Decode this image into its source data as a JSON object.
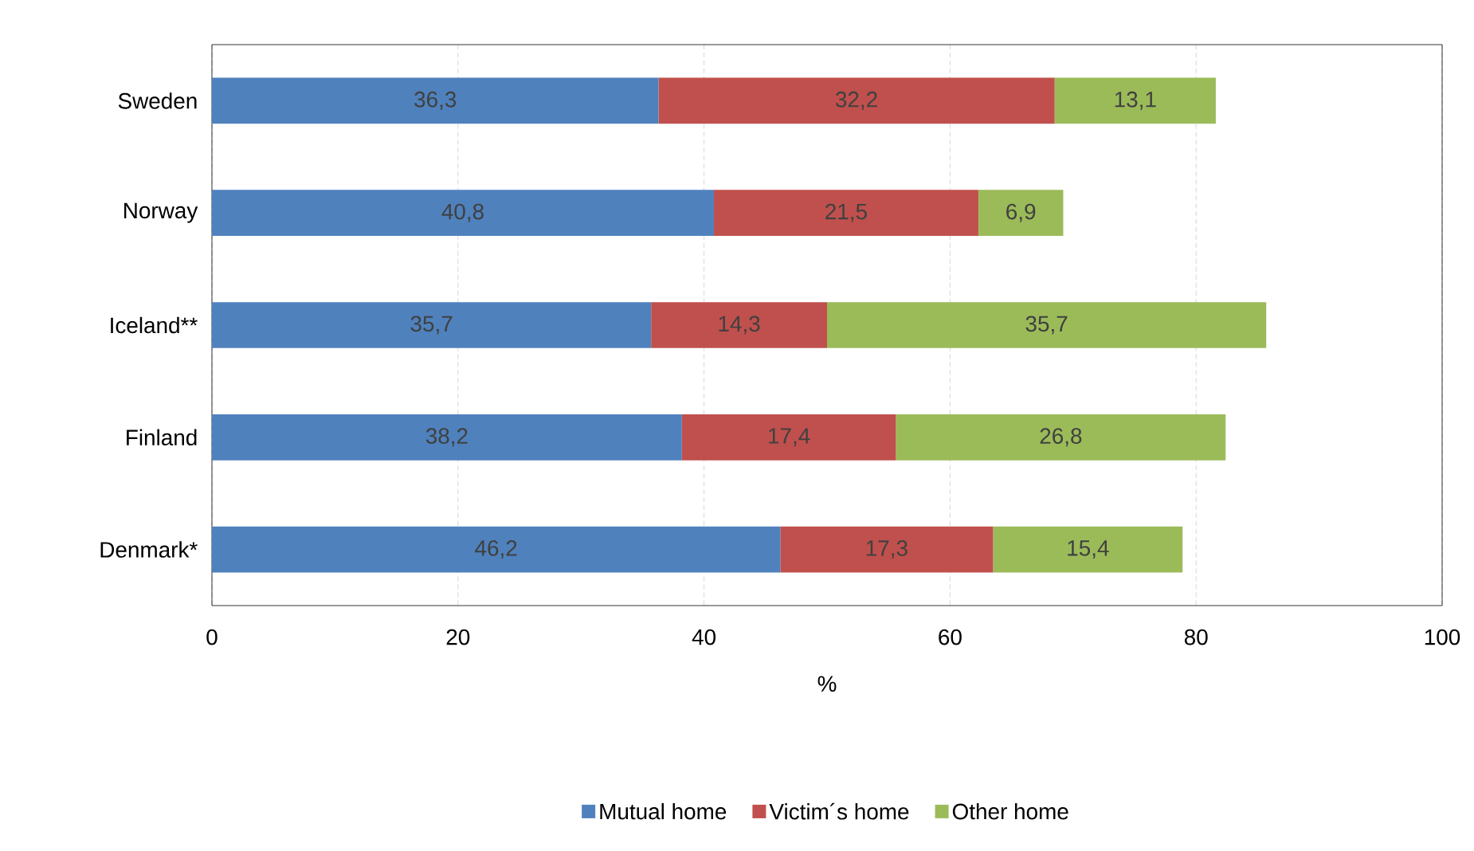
{
  "chart_data": {
    "type": "bar",
    "orientation": "horizontal",
    "stacked": true,
    "xlabel": "%",
    "categories": [
      "Sweden",
      "Norway",
      "Iceland**",
      "Finland",
      "Denmark*"
    ],
    "series": [
      {
        "name": "Mutual home",
        "color": "#4f81bd",
        "values": [
          36.3,
          40.8,
          35.7,
          38.2,
          46.2
        ],
        "value_labels": [
          "36,3",
          "40,8",
          "35,7",
          "38,2",
          "46,2"
        ]
      },
      {
        "name": "Victim´s home",
        "color": "#c0504d",
        "values": [
          32.2,
          21.5,
          14.3,
          17.4,
          17.3
        ],
        "value_labels": [
          "32,2",
          "21,5",
          "14,3",
          "17,4",
          "17,3"
        ]
      },
      {
        "name": "Other home",
        "color": "#9bbb59",
        "values": [
          13.1,
          6.9,
          35.7,
          26.8,
          15.4
        ],
        "value_labels": [
          "13,1",
          "6,9",
          "35,7",
          "26,8",
          "15,4"
        ]
      }
    ],
    "xlim": [
      0,
      100
    ],
    "xticks": [
      0,
      20,
      40,
      60,
      80,
      100
    ],
    "grid": "x",
    "legend": "bottom"
  }
}
